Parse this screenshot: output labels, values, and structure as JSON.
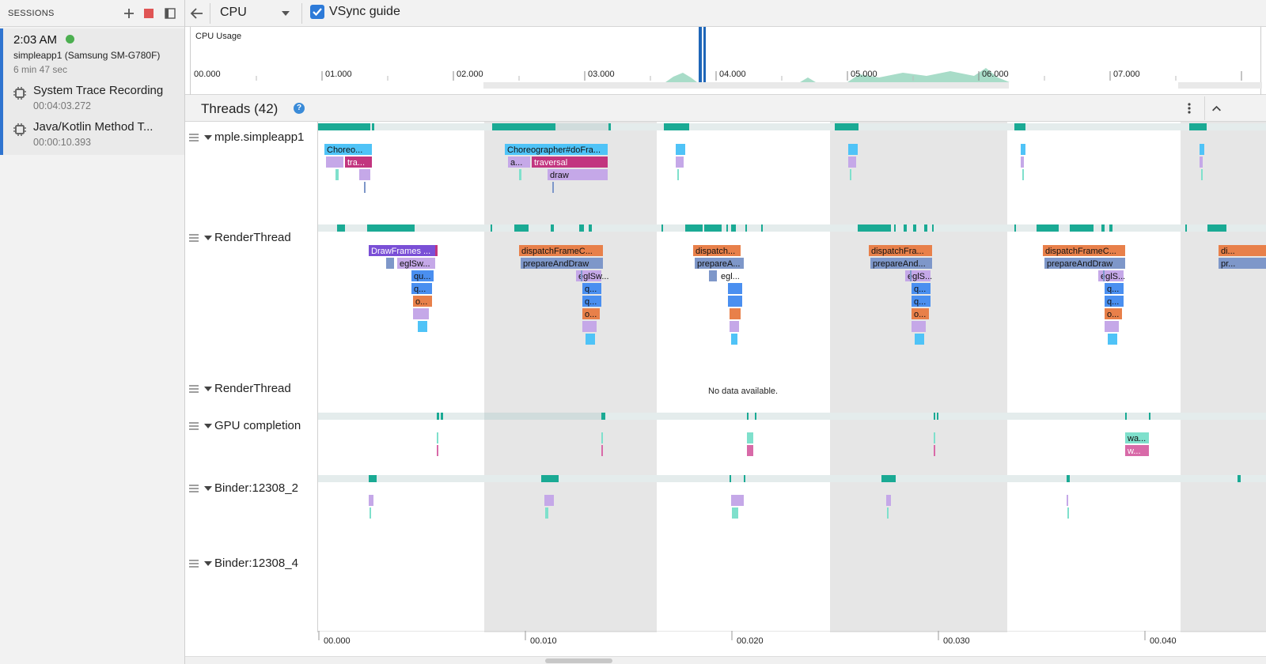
{
  "sidebar": {
    "title": "SESSIONS",
    "session": {
      "time": "2:03 AM",
      "device": "simpleapp1 (Samsung SM-G780F)",
      "duration": "6 min 47 sec"
    },
    "artifacts": [
      {
        "name": "System Trace Recording",
        "duration": "00:04:03.272",
        "icon": "chip-icon"
      },
      {
        "name": "Java/Kotlin Method Trace",
        "duration": "00:00:10.393",
        "icon": "chip-icon"
      }
    ]
  },
  "toolbar": {
    "cpu_selector": "CPU",
    "vsync_label": "VSync guide",
    "vsync_checked": true
  },
  "overview": {
    "label": "CPU Usage",
    "ticks": [
      "00.000",
      "01.000",
      "02.000",
      "03.000",
      "04.000",
      "05.000",
      "06.000",
      "07.000"
    ]
  },
  "threads": {
    "title": "Threads (42)",
    "names": [
      "mple.simpleapp1",
      "RenderThread",
      "RenderThread",
      "GPU completion",
      "Binder:12308_2",
      "Binder:12308_4"
    ],
    "no_data": "No data available."
  },
  "slices": {
    "main": [
      "Choreo...",
      "tra...",
      "Choreographer#doFra...",
      "a...",
      "traversal",
      "draw"
    ],
    "render": [
      "DrawFrames ...",
      "eglSw...",
      "qu...",
      "q...",
      "o...",
      "dispatchFrameC...",
      "prepareAndDraw",
      "eglSw...",
      "q...",
      "q...",
      "o...",
      "dispatch...",
      "prepareA...",
      "egl...",
      "dispatchFra...",
      "prepareAnd...",
      "eglS...",
      "q...",
      "q...",
      "o...",
      "dispatchFrameC...",
      "prepareAndDraw",
      "eglS...",
      "q...",
      "q...",
      "o...",
      "di...",
      "pr..."
    ],
    "gpu": [
      "wa...",
      "w..."
    ]
  },
  "bottom_axis": {
    "ticks": [
      "00.000",
      "00.010",
      "00.020",
      "00.030",
      "00.040"
    ]
  },
  "colors": {
    "accent": "#2d7ad8",
    "teal": "#1aaa94",
    "blue_slice": "#4fc3f7",
    "lavender": "#c5a8e8",
    "magenta": "#c2357f",
    "orange": "#e8804a",
    "steel": "#7e97c9",
    "purple": "#7a4fd6",
    "vsync_band": "#e6e6e6"
  }
}
